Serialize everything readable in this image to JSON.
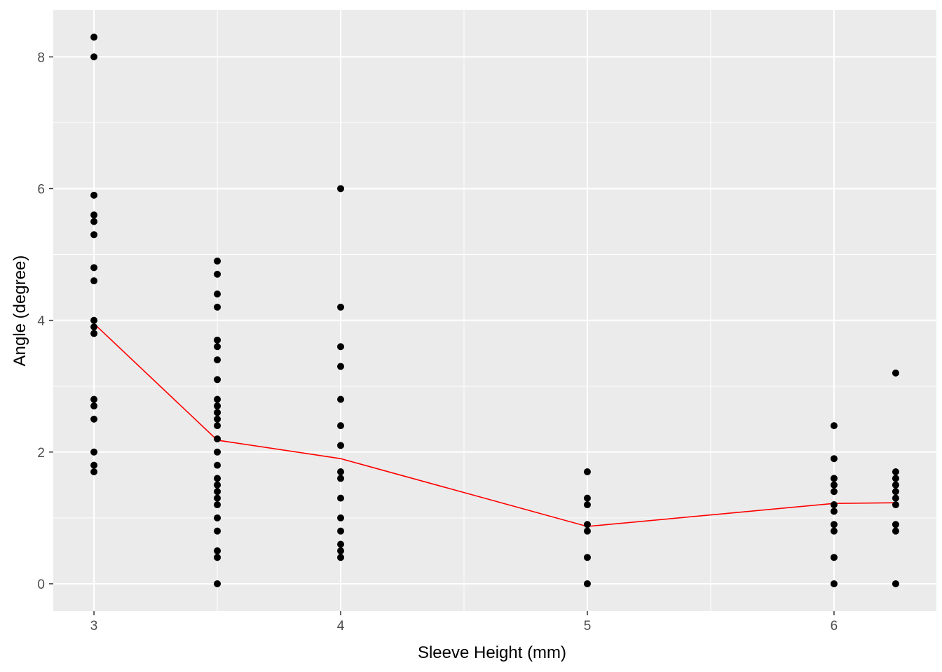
{
  "chart_data": {
    "type": "scatter",
    "title": "",
    "xlabel": "Sleeve Height (mm)",
    "ylabel": "Angle (degree)",
    "xlim": [
      2.835,
      6.415
    ],
    "ylim": [
      -0.415,
      8.715
    ],
    "x_ticks": [
      3,
      4,
      5,
      6
    ],
    "x_tick_labels": [
      "3",
      "4",
      "5",
      "6"
    ],
    "y_ticks": [
      0,
      2,
      4,
      6,
      8
    ],
    "y_tick_labels": [
      "0",
      "2",
      "4",
      "6",
      "8"
    ],
    "grid": true,
    "legend": "none",
    "colors": {
      "panel": "#ebebeb",
      "grid": "#ffffff",
      "points": "#000000",
      "mean_line": "#ff0000"
    },
    "series": [
      {
        "kind": "points",
        "points": [
          [
            3,
            8.3
          ],
          [
            3,
            8.0
          ],
          [
            3,
            5.9
          ],
          [
            3,
            5.6
          ],
          [
            3,
            5.5
          ],
          [
            3,
            5.3
          ],
          [
            3,
            4.8
          ],
          [
            3,
            4.6
          ],
          [
            3,
            4.0
          ],
          [
            3,
            3.9
          ],
          [
            3,
            3.8
          ],
          [
            3,
            2.8
          ],
          [
            3,
            2.7
          ],
          [
            3,
            2.5
          ],
          [
            3,
            2.0
          ],
          [
            3,
            1.8
          ],
          [
            3,
            1.7
          ],
          [
            3.5,
            4.9
          ],
          [
            3.5,
            4.7
          ],
          [
            3.5,
            4.4
          ],
          [
            3.5,
            4.2
          ],
          [
            3.5,
            3.7
          ],
          [
            3.5,
            3.6
          ],
          [
            3.5,
            3.4
          ],
          [
            3.5,
            3.1
          ],
          [
            3.5,
            2.8
          ],
          [
            3.5,
            2.7
          ],
          [
            3.5,
            2.6
          ],
          [
            3.5,
            2.5
          ],
          [
            3.5,
            2.4
          ],
          [
            3.5,
            2.2
          ],
          [
            3.5,
            2.0
          ],
          [
            3.5,
            1.8
          ],
          [
            3.5,
            1.6
          ],
          [
            3.5,
            1.5
          ],
          [
            3.5,
            1.4
          ],
          [
            3.5,
            1.3
          ],
          [
            3.5,
            1.2
          ],
          [
            3.5,
            1.0
          ],
          [
            3.5,
            0.8
          ],
          [
            3.5,
            0.5
          ],
          [
            3.5,
            0.4
          ],
          [
            3.5,
            0.0
          ],
          [
            4,
            6.0
          ],
          [
            4,
            4.2
          ],
          [
            4,
            3.6
          ],
          [
            4,
            3.3
          ],
          [
            4,
            2.8
          ],
          [
            4,
            2.4
          ],
          [
            4,
            2.1
          ],
          [
            4,
            1.7
          ],
          [
            4,
            1.6
          ],
          [
            4,
            1.3
          ],
          [
            4,
            1.0
          ],
          [
            4,
            0.8
          ],
          [
            4,
            0.6
          ],
          [
            4,
            0.5
          ],
          [
            4,
            0.4
          ],
          [
            5,
            1.7
          ],
          [
            5,
            1.3
          ],
          [
            5,
            1.2
          ],
          [
            5,
            0.9
          ],
          [
            5,
            0.8
          ],
          [
            5,
            0.4
          ],
          [
            5,
            0.0
          ],
          [
            6,
            2.4
          ],
          [
            6,
            1.9
          ],
          [
            6,
            1.6
          ],
          [
            6,
            1.5
          ],
          [
            6,
            1.4
          ],
          [
            6,
            1.2
          ],
          [
            6,
            1.1
          ],
          [
            6,
            0.9
          ],
          [
            6,
            0.8
          ],
          [
            6,
            0.4
          ],
          [
            6,
            0.0
          ],
          [
            6.25,
            3.2
          ],
          [
            6.25,
            1.7
          ],
          [
            6.25,
            1.6
          ],
          [
            6.25,
            1.5
          ],
          [
            6.25,
            1.4
          ],
          [
            6.25,
            1.3
          ],
          [
            6.25,
            1.2
          ],
          [
            6.25,
            0.9
          ],
          [
            6.25,
            0.8
          ],
          [
            6.25,
            0.0
          ]
        ]
      },
      {
        "kind": "line",
        "x": [
          3,
          3.5,
          4,
          5,
          6,
          6.25
        ],
        "y": [
          3.95,
          2.18,
          1.9,
          0.87,
          1.22,
          1.23
        ]
      }
    ]
  }
}
